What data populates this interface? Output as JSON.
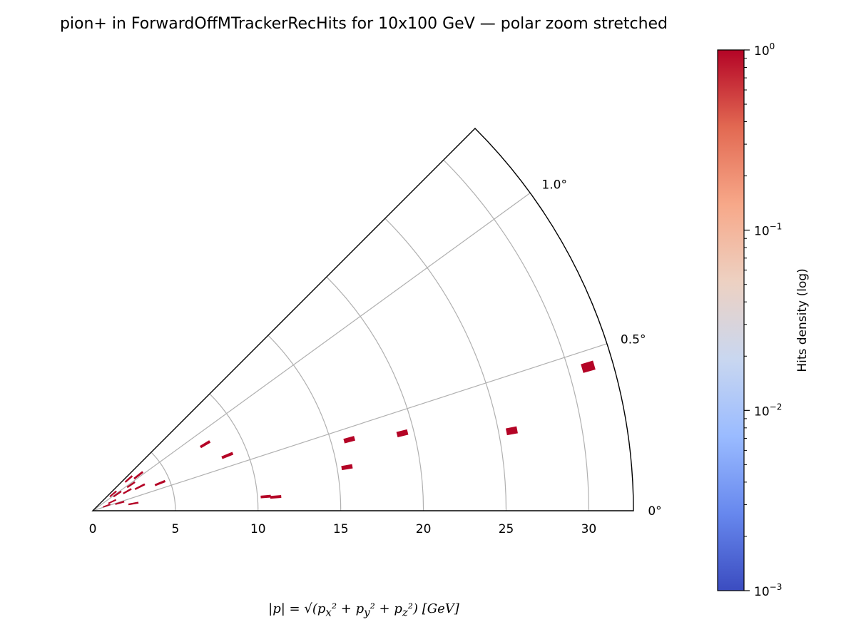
{
  "chart_data": {
    "type": "heatmap",
    "projection": "polar",
    "title": "pion+ in ForwardOffMTrackerRecHits for 10x100 GeV — polar zoom stretched",
    "radial_axis": {
      "label_html": "|p| = √(p<sub>x</sub>² + p<sub>y</sub>² + p<sub>z</sub>²) [GeV]",
      "range": [
        0,
        32.7
      ],
      "ticks": [
        0,
        5,
        10,
        15,
        20,
        25,
        30
      ],
      "tick_labels": [
        "0",
        "5",
        "10",
        "15",
        "20",
        "25",
        "30"
      ]
    },
    "angular_axis": {
      "unit": "deg",
      "range": [
        0,
        1.25
      ],
      "ticks": [
        0,
        0.5,
        1.0
      ],
      "tick_labels": [
        "0°",
        "0.5°",
        "1.0°"
      ],
      "display_stretch": "angles stretched by 36x"
    },
    "grid": true,
    "colorbar": {
      "label": "Hits density (log)",
      "scale": "log",
      "range": [
        0.001,
        1
      ],
      "colormap": "coolwarm",
      "tick_labels": [
        {
          "base": "10",
          "exp": "0",
          "value": 1
        },
        {
          "base": "10",
          "exp": "−1",
          "value": 0.1
        },
        {
          "base": "10",
          "exp": "−2",
          "value": 0.01
        },
        {
          "base": "10",
          "exp": "−3",
          "value": 0.001
        }
      ],
      "colors": [
        "#3b4cc0",
        "#6788ee",
        "#9abbff",
        "#c9d7f0",
        "#edd1c2",
        "#f7a889",
        "#e26952",
        "#b40426"
      ]
    },
    "hits": [
      {
        "p": 31.2,
        "theta_deg": 0.45,
        "density": 1,
        "dp": 0.7,
        "dtheta": 0.025
      },
      {
        "p": 25.8,
        "theta_deg": 0.3,
        "density": 1,
        "dp": 0.6,
        "dtheta": 0.022
      },
      {
        "p": 19.3,
        "theta_deg": 0.39,
        "density": 1,
        "dp": 0.6,
        "dtheta": 0.022
      },
      {
        "p": 16.1,
        "theta_deg": 0.43,
        "density": 1,
        "dp": 0.6,
        "dtheta": 0.022
      },
      {
        "p": 15.6,
        "theta_deg": 0.27,
        "density": 1,
        "dp": 0.6,
        "dtheta": 0.02
      },
      {
        "p": 11.1,
        "theta_deg": 0.12,
        "density": 1,
        "dp": 0.6,
        "dtheta": 0.015
      },
      {
        "p": 10.5,
        "theta_deg": 0.13,
        "density": 1,
        "dp": 0.55,
        "dtheta": 0.015
      },
      {
        "p": 8.8,
        "theta_deg": 0.62,
        "density": 1,
        "dp": 0.65,
        "dtheta": 0.02
      },
      {
        "p": 7.9,
        "theta_deg": 0.85,
        "density": 1,
        "dp": 0.6,
        "dtheta": 0.02
      },
      {
        "p": 4.4,
        "theta_deg": 0.62,
        "density": 1,
        "dp": 0.6,
        "dtheta": 0.025
      },
      {
        "p": 3.5,
        "theta_deg": 1.05,
        "density": 1,
        "dp": 0.6,
        "dtheta": 0.025
      },
      {
        "p": 3.2,
        "theta_deg": 0.75,
        "density": 1,
        "dp": 0.6,
        "dtheta": 0.025
      },
      {
        "p": 2.9,
        "theta_deg": 1.15,
        "density": 1,
        "dp": 0.5,
        "dtheta": 0.025
      },
      {
        "p": 2.8,
        "theta_deg": 0.95,
        "density": 1,
        "dp": 0.5,
        "dtheta": 0.025
      },
      {
        "p": 2.5,
        "theta_deg": 0.28,
        "density": 1,
        "dp": 0.55,
        "dtheta": 0.025
      },
      {
        "p": 2.4,
        "theta_deg": 0.82,
        "density": 1,
        "dp": 0.5,
        "dtheta": 0.025
      },
      {
        "p": 1.8,
        "theta_deg": 0.95,
        "density": 1,
        "dp": 0.5,
        "dtheta": 0.03
      },
      {
        "p": 1.7,
        "theta_deg": 0.45,
        "density": 1,
        "dp": 0.5,
        "dtheta": 0.03
      },
      {
        "p": 1.6,
        "theta_deg": 1.1,
        "density": 1,
        "dp": 0.45,
        "dtheta": 0.03
      },
      {
        "p": 1.3,
        "theta_deg": 0.7,
        "density": 1,
        "dp": 0.45,
        "dtheta": 0.03
      },
      {
        "p": 0.9,
        "theta_deg": 0.55,
        "density": 1,
        "dp": 0.4,
        "dtheta": 0.03
      }
    ]
  }
}
